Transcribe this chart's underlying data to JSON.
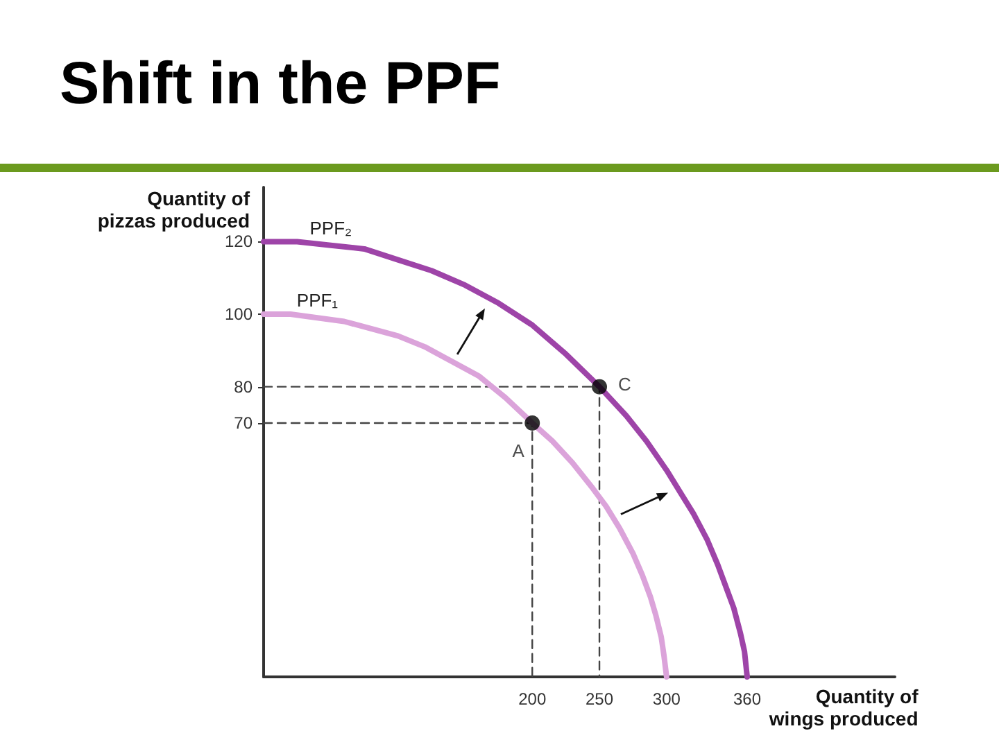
{
  "chart_data": {
    "type": "line",
    "title": "Shift in the PPF",
    "xlabel": "Quantity of wings produced",
    "ylabel": "Quantity of pizzas produced",
    "xlim": [
      0,
      470
    ],
    "ylim": [
      0,
      135
    ],
    "xticks": [
      200,
      250,
      300,
      360
    ],
    "yticks": [
      70,
      80,
      100,
      120
    ],
    "grid": false,
    "legend": false,
    "series": [
      {
        "name": "PPF₂",
        "color": "#9e44a8",
        "marker": "none",
        "line_style": "solid",
        "x": [
          0,
          25,
          50,
          75,
          100,
          125,
          150,
          175,
          200,
          225,
          250,
          270,
          285,
          300,
          310,
          320,
          330,
          338,
          345,
          350,
          355,
          358,
          360
        ],
        "values": [
          120,
          120,
          119,
          118,
          115,
          112,
          108,
          103,
          97,
          89,
          80,
          72,
          65,
          57,
          51,
          45,
          38,
          31,
          24,
          19,
          12,
          7,
          0
        ]
      },
      {
        "name": "PPF₁",
        "color": "#dba3da",
        "marker": "none",
        "line_style": "solid",
        "x": [
          0,
          20,
          40,
          60,
          80,
          100,
          120,
          140,
          160,
          180,
          200,
          215,
          230,
          245,
          255,
          265,
          275,
          282,
          288,
          292,
          296,
          298,
          300
        ],
        "values": [
          100,
          100,
          99,
          98,
          96,
          94,
          91,
          87,
          83,
          77,
          70,
          65,
          59,
          52,
          47,
          41,
          34,
          28,
          22,
          17,
          11,
          6,
          0
        ]
      },
      {
        "type": "line",
        "color": "#444444",
        "marker": "none",
        "line_style": "dashed",
        "x": [
          0,
          250,
          250
        ],
        "values": [
          80,
          80,
          0
        ]
      },
      {
        "type": "line",
        "color": "#444444",
        "marker": "none",
        "line_style": "dashed",
        "x": [
          0,
          200,
          200
        ],
        "values": [
          70,
          70,
          0
        ]
      },
      {
        "type": "scatter",
        "name": "A",
        "color": "#000000",
        "marker": "circle",
        "x": [
          200
        ],
        "values": [
          70
        ]
      },
      {
        "type": "scatter",
        "name": "C",
        "color": "#000000",
        "marker": "circle",
        "x": [
          250
        ],
        "values": [
          80
        ]
      }
    ]
  }
}
